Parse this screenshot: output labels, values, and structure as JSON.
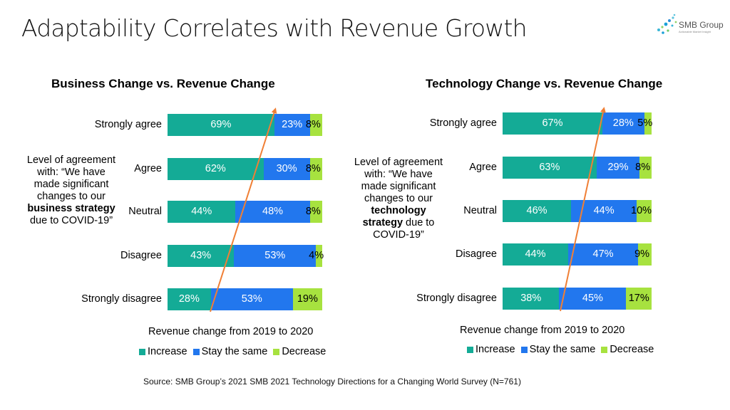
{
  "slide": {
    "title": "Adaptability Correlates with Revenue Growth",
    "logo": {
      "name": "SMB Group",
      "tagline": "Actionable Market Insight"
    },
    "source": "Source: SMB Group’s 2021 SMB 2021 Technology  Directions for a Changing World Survey (N=761)"
  },
  "colors": {
    "increase": "#14ab96",
    "stay": "#2277ee",
    "decrease": "#a7e23f",
    "arrow": "#f07f35"
  },
  "panels": [
    {
      "side_text": {
        "pre": "Level of agreement with: “We have made significant changes to our ",
        "bold": "business strategy",
        "post": " due to COVID-19”"
      }
    },
    {
      "side_text": {
        "pre": "Level of agreement with: “We have made significant changes to our ",
        "bold": "technology strategy",
        "post": " due to COVID-19”"
      }
    }
  ],
  "chart_data": [
    {
      "type": "bar",
      "stacked": true,
      "orientation": "horizontal",
      "title": "Business Change vs. Revenue Change",
      "xlabel": "Revenue change from 2019 to 2020",
      "ylabel": "Level of agreement",
      "categories": [
        "Strongly agree",
        "Agree",
        "Neutral",
        "Disagree",
        "Strongly disagree"
      ],
      "series": [
        {
          "name": "Increase",
          "values": [
            69,
            62,
            44,
            43,
            28
          ]
        },
        {
          "name": "Stay the same",
          "values": [
            23,
            30,
            48,
            53,
            53
          ]
        },
        {
          "name": "Decrease",
          "values": [
            8,
            8,
            8,
            4,
            19
          ]
        }
      ],
      "data_labels": [
        [
          "69%",
          "62%",
          "44%",
          "43%",
          "28%"
        ],
        [
          "23%",
          "30%",
          "48%",
          "53%",
          "53%"
        ],
        [
          "8%",
          "8%",
          "8%",
          "4%",
          "19%"
        ]
      ],
      "xlim": [
        0,
        100
      ],
      "legend": "bottom",
      "annotation": "trend arrow pointing up from Strongly disagree to Strongly agree"
    },
    {
      "type": "bar",
      "stacked": true,
      "orientation": "horizontal",
      "title": "Technology Change vs. Revenue Change",
      "xlabel": "Revenue change from 2019 to 2020",
      "ylabel": "Level of agreement",
      "categories": [
        "Strongly agree",
        "Agree",
        "Neutral",
        "Disagree",
        "Strongly disagree"
      ],
      "series": [
        {
          "name": "Increase",
          "values": [
            67,
            63,
            46,
            44,
            38
          ]
        },
        {
          "name": "Stay the same",
          "values": [
            28,
            29,
            44,
            47,
            45
          ]
        },
        {
          "name": "Decrease",
          "values": [
            5,
            8,
            10,
            9,
            17
          ]
        }
      ],
      "data_labels": [
        [
          "67%",
          "63%",
          "46%",
          "44%",
          "38%"
        ],
        [
          "28%",
          "29%",
          "44%",
          "47%",
          "45%"
        ],
        [
          "5%",
          "8%",
          "10%",
          "9%",
          "17%"
        ]
      ],
      "xlim": [
        0,
        100
      ],
      "legend": "bottom",
      "annotation": "trend arrow pointing up from Strongly disagree to Strongly agree"
    }
  ]
}
